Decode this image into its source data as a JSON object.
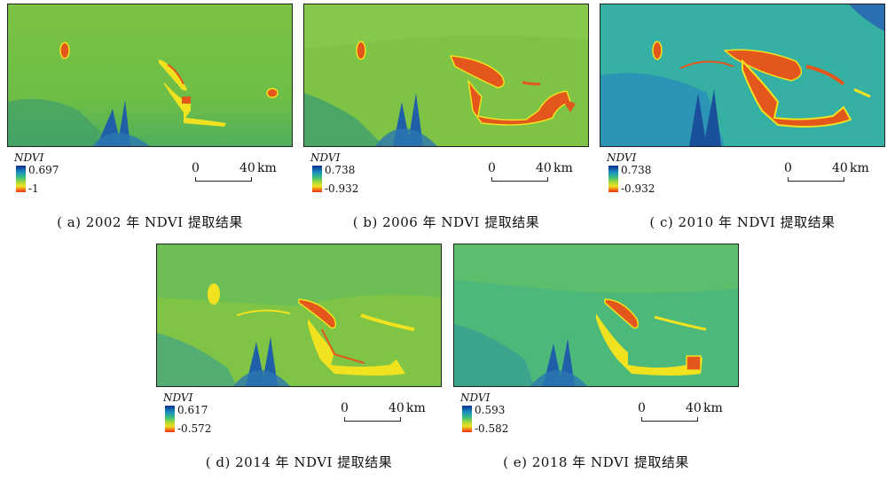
{
  "colors": {
    "background_green": "#6fbe3f",
    "water_blue": "#1f5fa8",
    "bare_red": "#e34a1a",
    "bare_yellow": "#f1e21f"
  },
  "panels": [
    {
      "id": "a",
      "caption": "( a) 2002 年 NDVI 提取结果",
      "legend_title": "NDVI",
      "legend_max": "0.697",
      "legend_min": "-1",
      "scale_zero": "0",
      "scale_value": "40",
      "scale_unit": "km"
    },
    {
      "id": "b",
      "caption": "( b) 2006 年 NDVI 提取结果",
      "legend_title": "NDVI",
      "legend_max": "0.738",
      "legend_min": "-0.932",
      "scale_zero": "0",
      "scale_value": "40",
      "scale_unit": "km"
    },
    {
      "id": "c",
      "caption": "( c) 2010 年 NDVI 提取结果",
      "legend_title": "NDVI",
      "legend_max": "0.738",
      "legend_min": "-0.932",
      "scale_zero": "0",
      "scale_value": "40",
      "scale_unit": "km"
    },
    {
      "id": "d",
      "caption": "( d) 2014 年 NDVI 提取结果",
      "legend_title": "NDVI",
      "legend_max": "0.617",
      "legend_min": "-0.572",
      "scale_zero": "0",
      "scale_value": "40",
      "scale_unit": "km"
    },
    {
      "id": "e",
      "caption": "( e) 2018 年 NDVI 提取结果",
      "legend_title": "NDVI",
      "legend_max": "0.593",
      "legend_min": "-0.582",
      "scale_zero": "0",
      "scale_value": "40",
      "scale_unit": "km"
    }
  ]
}
